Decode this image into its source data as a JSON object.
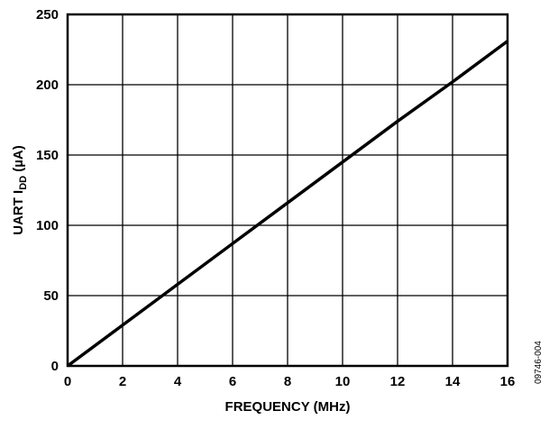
{
  "chart_data": {
    "type": "line",
    "title": "",
    "xlabel": "FREQUENCY (MHz)",
    "ylabel_main": "UART I",
    "ylabel_sub": "DD",
    "ylabel_unit": " (µA)",
    "xlim": [
      0,
      16
    ],
    "ylim": [
      0,
      250
    ],
    "xticks": [
      0,
      2,
      4,
      6,
      8,
      10,
      12,
      14,
      16
    ],
    "yticks": [
      0,
      50,
      100,
      150,
      200,
      250
    ],
    "grid": true,
    "series": [
      {
        "x": [
          0,
          2,
          4,
          6,
          8,
          10,
          12,
          14,
          16
        ],
        "y": [
          0,
          29,
          58,
          87,
          116,
          145,
          174,
          202,
          231
        ],
        "color": "#000000"
      }
    ],
    "annotation": "09746-004"
  }
}
